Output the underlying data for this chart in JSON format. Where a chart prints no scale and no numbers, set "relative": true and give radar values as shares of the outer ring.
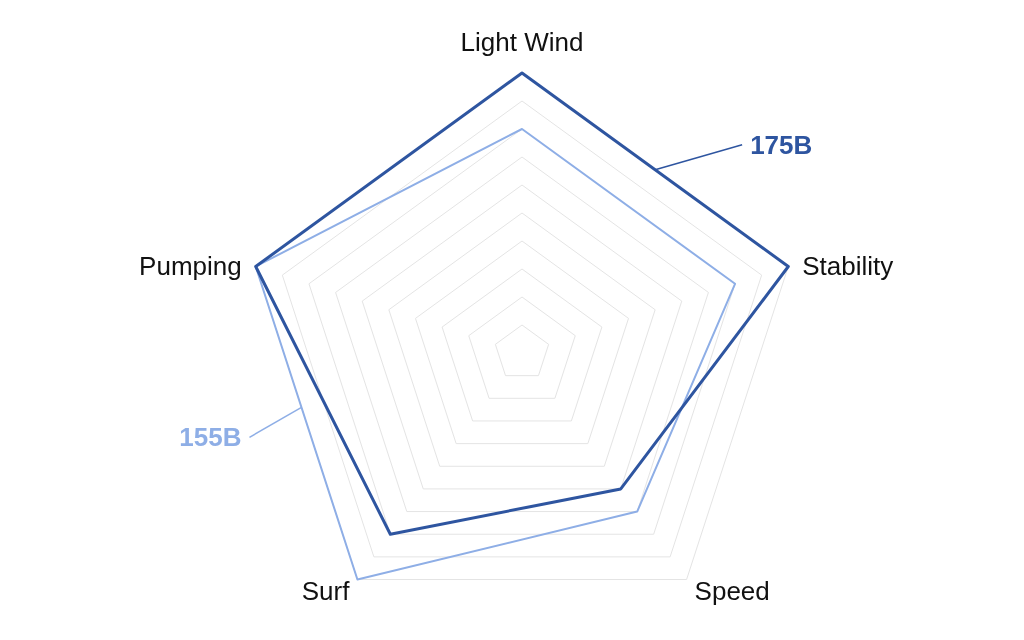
{
  "chart_data": {
    "type": "radar",
    "relative": true,
    "categories": [
      "Light Wind",
      "Stability",
      "Speed",
      "Surf",
      "Pumping"
    ],
    "series": [
      {
        "name": "175B",
        "color": "#2e55a0",
        "values": [
          1.0,
          1.0,
          0.6,
          0.8,
          1.0
        ]
      },
      {
        "name": "155B",
        "color": "#8eaee6",
        "values": [
          0.8,
          0.8,
          0.7,
          1.0,
          1.0
        ]
      }
    ],
    "grid": true
  }
}
